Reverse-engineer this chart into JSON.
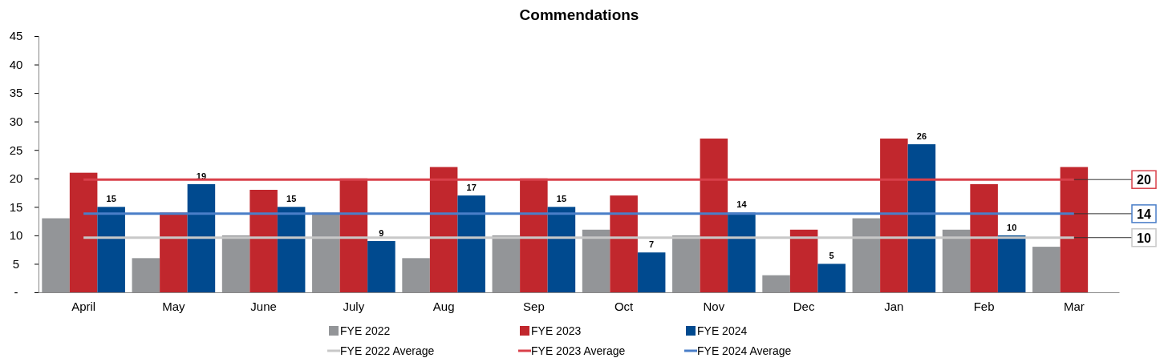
{
  "chart_data": {
    "type": "bar",
    "title": "Commendations",
    "categories": [
      "April",
      "May",
      "June",
      "July",
      "Aug",
      "Sep",
      "Oct",
      "Nov",
      "Dec",
      "Jan",
      "Feb",
      "Mar"
    ],
    "series": [
      {
        "name": "FYE 2022",
        "color": "#939598",
        "values": [
          13,
          6,
          10,
          14,
          6,
          10,
          11,
          10,
          3,
          13,
          11,
          8
        ]
      },
      {
        "name": "FYE 2023",
        "color": "#c1272d",
        "values": [
          21,
          14,
          18,
          20,
          22,
          20,
          17,
          27,
          11,
          27,
          19,
          22
        ]
      },
      {
        "name": "FYE 2024",
        "color": "#004a8f",
        "values": [
          15,
          19,
          15,
          9,
          17,
          15,
          7,
          14,
          5,
          26,
          10,
          null
        ],
        "value_labels": [
          "15",
          "19",
          "15",
          "9",
          "17",
          "15",
          "7",
          "14",
          "5",
          "26",
          "10",
          null
        ]
      },
      {
        "name": "FYE 2022 Average",
        "type": "line",
        "color": "#c8c8c8",
        "values": [
          9.6,
          9.6,
          9.6,
          9.6,
          9.6,
          9.6,
          9.6,
          9.6,
          9.6,
          9.6,
          9.6,
          9.6
        ]
      },
      {
        "name": "FYE 2023 Average",
        "type": "line",
        "color": "#d9404a",
        "values": [
          19.8,
          19.8,
          19.8,
          19.8,
          19.8,
          19.8,
          19.8,
          19.8,
          19.8,
          19.8,
          19.8,
          19.8
        ]
      },
      {
        "name": "FYE 2024 Average",
        "type": "line",
        "color": "#4a7ec8",
        "values": [
          13.8,
          13.8,
          13.8,
          13.8,
          13.8,
          13.8,
          13.8,
          13.8,
          13.8,
          13.8,
          13.8,
          13.8
        ]
      }
    ],
    "annotations": [
      {
        "text": "20",
        "x": "Mar",
        "y": 19.8
      },
      {
        "text": "14",
        "x": "Mar",
        "y": 13.8
      },
      {
        "text": "10",
        "x": "Mar",
        "y": 9.6
      }
    ],
    "ylim": [
      0,
      45
    ],
    "yticks": [
      {
        "value": 0,
        "label": "-"
      },
      5,
      10,
      15,
      20,
      25,
      30,
      35,
      40,
      45
    ],
    "grid": false,
    "legend": "bottom",
    "marker": "none",
    "line_style": "solid"
  }
}
